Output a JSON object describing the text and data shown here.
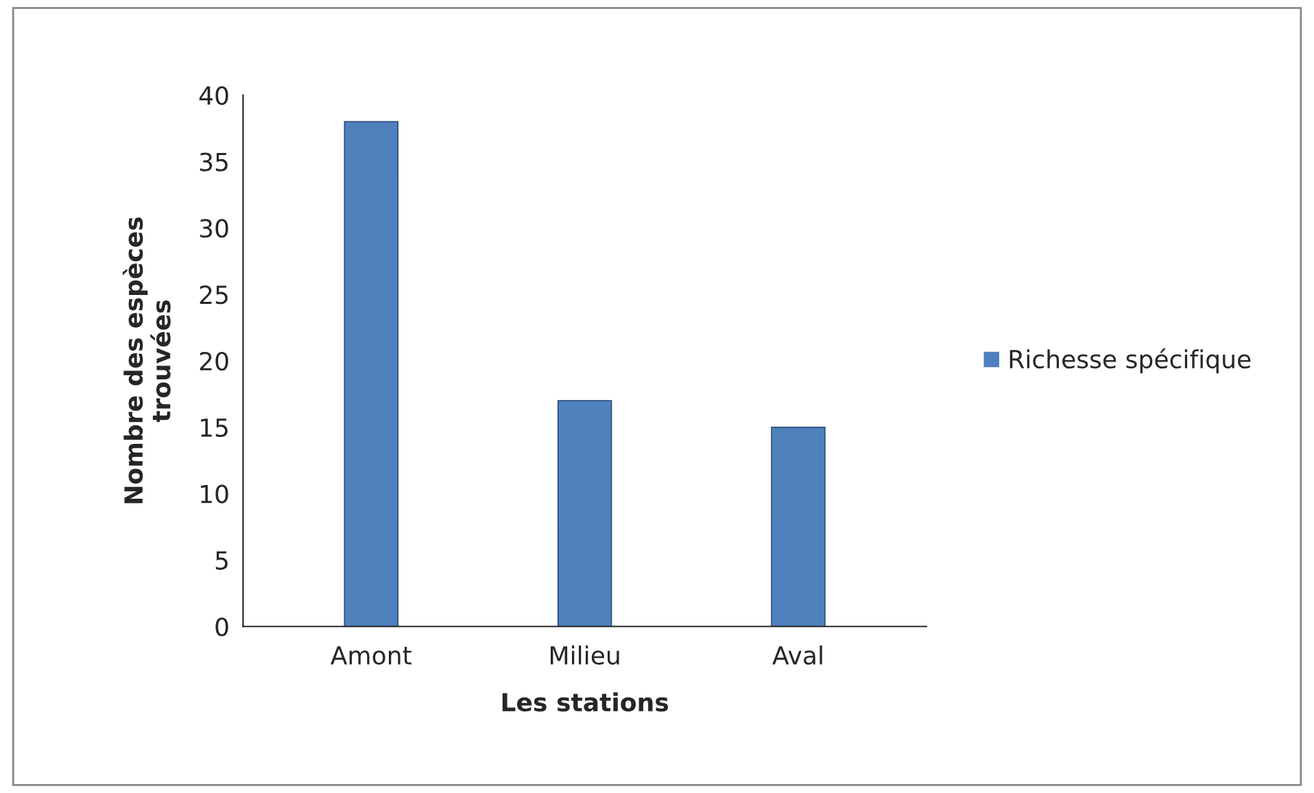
{
  "chart_data": {
    "type": "bar",
    "xlabel": "Les stations",
    "ylabel": "Nombre des espèces\ntrouvées",
    "categories": [
      "Amont",
      "Milieu",
      "Aval"
    ],
    "series": [
      {
        "name": "Richesse spécifique",
        "color": "#4f81bd",
        "values": [
          38,
          17,
          15
        ]
      }
    ],
    "ylim": [
      0,
      40
    ],
    "yticks": [
      0,
      5,
      10,
      15,
      20,
      25,
      30,
      35,
      40
    ],
    "grid": false,
    "legend": "right"
  }
}
